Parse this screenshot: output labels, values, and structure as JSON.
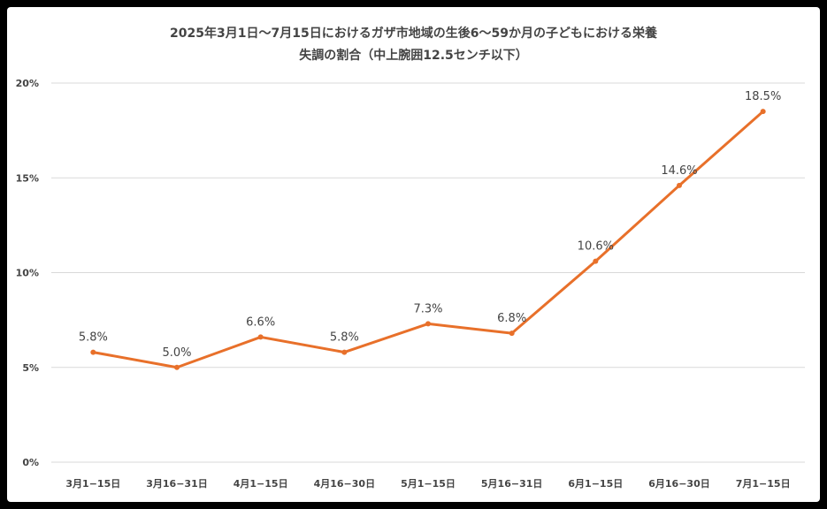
{
  "chart_data": {
    "type": "line",
    "title_line1": "2025年3月1日〜7月15日におけるガザ市地域の生後6〜59か月の子どもにおける栄養",
    "title_line2": "失調の割合（中上腕囲12.5センチ以下）",
    "categories": [
      "3月1−15日",
      "3月16−31日",
      "4月1−15日",
      "4月16−30日",
      "5月1−15日",
      "5月16−31日",
      "6月1−15日",
      "6月16−30日",
      "7月1−15日"
    ],
    "values": [
      5.8,
      5.0,
      6.6,
      5.8,
      7.3,
      6.8,
      10.6,
      14.6,
      18.5
    ],
    "data_labels": [
      "5.8%",
      "5.0%",
      "6.6%",
      "5.8%",
      "7.3%",
      "6.8%",
      "10.6%",
      "14.6%",
      "18.5%"
    ],
    "y_ticks": [
      "0%",
      "5%",
      "10%",
      "15%",
      "20%"
    ],
    "ylim": [
      0,
      20
    ],
    "grid": true,
    "line_color": "#e8702a"
  }
}
